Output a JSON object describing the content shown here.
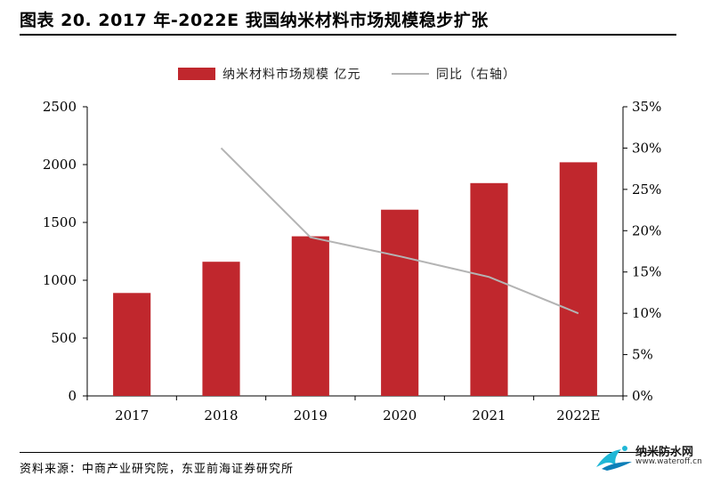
{
  "title": "图表 20. 2017 年-2022E 我国纳米材料市场规模稳步扩张",
  "source": "资料来源：中商产业研究院，东亚前海证券研究所",
  "watermark": {
    "name": "纳米防水网",
    "url": "www.wateroff.cn"
  },
  "colors": {
    "bar": "#c0272d",
    "line": "#b4b4b4",
    "axis": "#000000"
  },
  "chart_data": {
    "type": "bar",
    "categories": [
      "2017",
      "2018",
      "2019",
      "2020",
      "2021",
      "2022E"
    ],
    "series": [
      {
        "name": "纳米材料市场规模 亿元",
        "type": "bar",
        "axis": "left",
        "values": [
          890,
          1160,
          1380,
          1610,
          1840,
          2020
        ]
      },
      {
        "name": "同比（右轴）",
        "type": "line",
        "axis": "right",
        "values": [
          null,
          30.0,
          19.2,
          16.9,
          14.4,
          10.0
        ]
      }
    ],
    "ylim_left": [
      0,
      2500
    ],
    "yticks_left": [
      "0",
      "500",
      "1000",
      "1500",
      "2000",
      "2500"
    ],
    "ylim_right": [
      0,
      35
    ],
    "yticks_right": [
      "0%",
      "5%",
      "10%",
      "15%",
      "20%",
      "25%",
      "30%",
      "35%"
    ],
    "legend_position": "top-center",
    "grid": false
  }
}
